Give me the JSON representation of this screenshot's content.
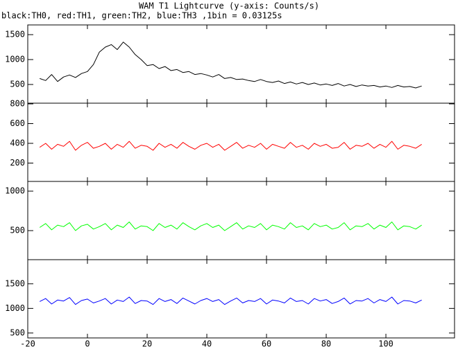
{
  "chart_data": [
    {
      "type": "line",
      "title": "WAM T1 Lightcurve (y-axis: Counts/s)",
      "subtitle": "black:TH0, red:TH1, green:TH2, blue:TH3 ,1bin = 0.03125s",
      "x": [
        -16,
        -14,
        -12,
        -10,
        -8,
        -6,
        -4,
        -2,
        0,
        2,
        4,
        6,
        8,
        10,
        12,
        14,
        16,
        18,
        20,
        22,
        24,
        26,
        28,
        30,
        32,
        34,
        36,
        38,
        40,
        42,
        44,
        46,
        48,
        50,
        52,
        54,
        56,
        58,
        60,
        62,
        64,
        66,
        68,
        70,
        72,
        74,
        76,
        78,
        80,
        82,
        84,
        86,
        88,
        90,
        92,
        94,
        96,
        98,
        100,
        102,
        104,
        106,
        108,
        110,
        112
      ],
      "series": [
        {
          "name": "TH0",
          "color": "#000000",
          "values": [
            620,
            580,
            700,
            560,
            650,
            690,
            640,
            720,
            760,
            900,
            1150,
            1250,
            1300,
            1200,
            1350,
            1250,
            1100,
            1000,
            880,
            900,
            820,
            860,
            780,
            800,
            740,
            760,
            700,
            720,
            690,
            650,
            700,
            620,
            640,
            600,
            610,
            580,
            560,
            600,
            560,
            540,
            570,
            520,
            550,
            510,
            540,
            500,
            530,
            490,
            510,
            480,
            520,
            470,
            500,
            460,
            490,
            470,
            480,
            450,
            470,
            440,
            480,
            450,
            460,
            430,
            470
          ]
        }
      ],
      "xlim": [
        -20,
        123
      ],
      "ylim": [
        125,
        1695
      ],
      "yticks": [
        500,
        1000,
        1500
      ]
    },
    {
      "type": "line",
      "x": [
        -16,
        -14,
        -12,
        -10,
        -8,
        -6,
        -4,
        -2,
        0,
        2,
        4,
        6,
        8,
        10,
        12,
        14,
        16,
        18,
        20,
        22,
        24,
        26,
        28,
        30,
        32,
        34,
        36,
        38,
        40,
        42,
        44,
        46,
        48,
        50,
        52,
        54,
        56,
        58,
        60,
        62,
        64,
        66,
        68,
        70,
        72,
        74,
        76,
        78,
        80,
        82,
        84,
        86,
        88,
        90,
        92,
        94,
        96,
        98,
        100,
        102,
        104,
        106,
        108,
        110,
        112
      ],
      "series": [
        {
          "name": "TH1",
          "color": "#ff0000",
          "values": [
            360,
            400,
            340,
            390,
            370,
            420,
            330,
            380,
            410,
            350,
            370,
            400,
            340,
            390,
            360,
            420,
            350,
            380,
            370,
            330,
            400,
            360,
            390,
            350,
            410,
            370,
            340,
            380,
            400,
            360,
            390,
            330,
            370,
            410,
            350,
            380,
            360,
            400,
            340,
            390,
            370,
            350,
            410,
            360,
            380,
            340,
            400,
            370,
            390,
            350,
            360,
            410,
            340,
            380,
            370,
            400,
            350,
            390,
            360,
            420,
            340,
            380,
            370,
            350,
            390
          ]
        }
      ],
      "xlim": [
        -20,
        123
      ],
      "ylim": [
        14,
        807
      ],
      "yticks": [
        200,
        400,
        600,
        800
      ]
    },
    {
      "type": "line",
      "x": [
        -16,
        -14,
        -12,
        -10,
        -8,
        -6,
        -4,
        -2,
        0,
        2,
        4,
        6,
        8,
        10,
        12,
        14,
        16,
        18,
        20,
        22,
        24,
        26,
        28,
        30,
        32,
        34,
        36,
        38,
        40,
        42,
        44,
        46,
        48,
        50,
        52,
        54,
        56,
        58,
        60,
        62,
        64,
        66,
        68,
        70,
        72,
        74,
        76,
        78,
        80,
        82,
        84,
        86,
        88,
        90,
        92,
        94,
        96,
        98,
        100,
        102,
        104,
        106,
        108,
        110,
        112
      ],
      "series": [
        {
          "name": "TH2",
          "color": "#00ff00",
          "values": [
            540,
            590,
            510,
            570,
            550,
            600,
            500,
            560,
            580,
            520,
            550,
            590,
            510,
            570,
            540,
            610,
            520,
            560,
            550,
            500,
            590,
            540,
            570,
            520,
            600,
            550,
            510,
            560,
            590,
            540,
            570,
            500,
            550,
            600,
            520,
            560,
            540,
            590,
            510,
            570,
            550,
            520,
            600,
            540,
            560,
            510,
            590,
            550,
            570,
            520,
            540,
            600,
            510,
            560,
            550,
            590,
            520,
            570,
            540,
            610,
            510,
            560,
            550,
            520,
            570
          ]
        }
      ],
      "xlim": [
        -20,
        123
      ],
      "ylim": [
        132,
        1123
      ],
      "yticks": [
        500,
        1000
      ]
    },
    {
      "type": "line",
      "x": [
        -16,
        -14,
        -12,
        -10,
        -8,
        -6,
        -4,
        -2,
        0,
        2,
        4,
        6,
        8,
        10,
        12,
        14,
        16,
        18,
        20,
        22,
        24,
        26,
        28,
        30,
        32,
        34,
        36,
        38,
        40,
        42,
        44,
        46,
        48,
        50,
        52,
        54,
        56,
        58,
        60,
        62,
        64,
        66,
        68,
        70,
        72,
        74,
        76,
        78,
        80,
        82,
        84,
        86,
        88,
        90,
        92,
        94,
        96,
        98,
        100,
        102,
        104,
        106,
        108,
        110,
        112
      ],
      "series": [
        {
          "name": "TH3",
          "color": "#0000ff",
          "values": [
            1140,
            1200,
            1090,
            1170,
            1150,
            1220,
            1080,
            1160,
            1190,
            1110,
            1150,
            1200,
            1090,
            1170,
            1140,
            1230,
            1100,
            1160,
            1150,
            1080,
            1200,
            1140,
            1180,
            1100,
            1210,
            1150,
            1090,
            1160,
            1200,
            1140,
            1180,
            1080,
            1150,
            1210,
            1110,
            1160,
            1140,
            1200,
            1090,
            1170,
            1150,
            1110,
            1210,
            1140,
            1160,
            1090,
            1200,
            1150,
            1180,
            1100,
            1140,
            1210,
            1090,
            1160,
            1150,
            1200,
            1110,
            1180,
            1140,
            1230,
            1090,
            1160,
            1150,
            1110,
            1170
          ]
        }
      ],
      "xlim": [
        -20,
        123
      ],
      "ylim": [
        400,
        1990
      ],
      "yticks": [
        500,
        1000,
        1500
      ],
      "xticks": [
        -20,
        0,
        20,
        40,
        60,
        80,
        100
      ]
    }
  ]
}
